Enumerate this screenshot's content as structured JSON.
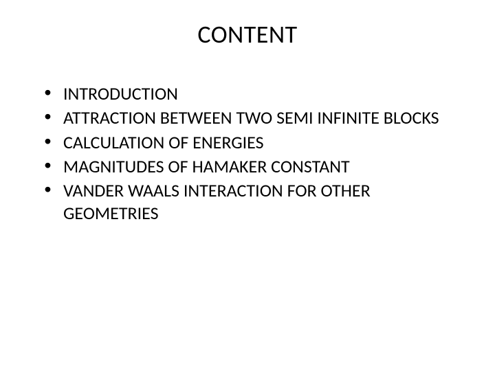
{
  "slide": {
    "title": "CONTENT",
    "bullets": [
      "INTRODUCTION",
      "ATTRACTION BETWEEN TWO SEMI INFINITE BLOCKS",
      "CALCULATION OF ENERGIES",
      "MAGNITUDES OF HAMAKER CONSTANT",
      "VANDER WAALS INTERACTION FOR OTHER GEOMETRIES"
    ]
  },
  "style": {
    "background_color": "#ffffff",
    "text_color": "#000000",
    "title_fontsize": 36,
    "body_fontsize": 26,
    "font_family": "Calibri"
  }
}
